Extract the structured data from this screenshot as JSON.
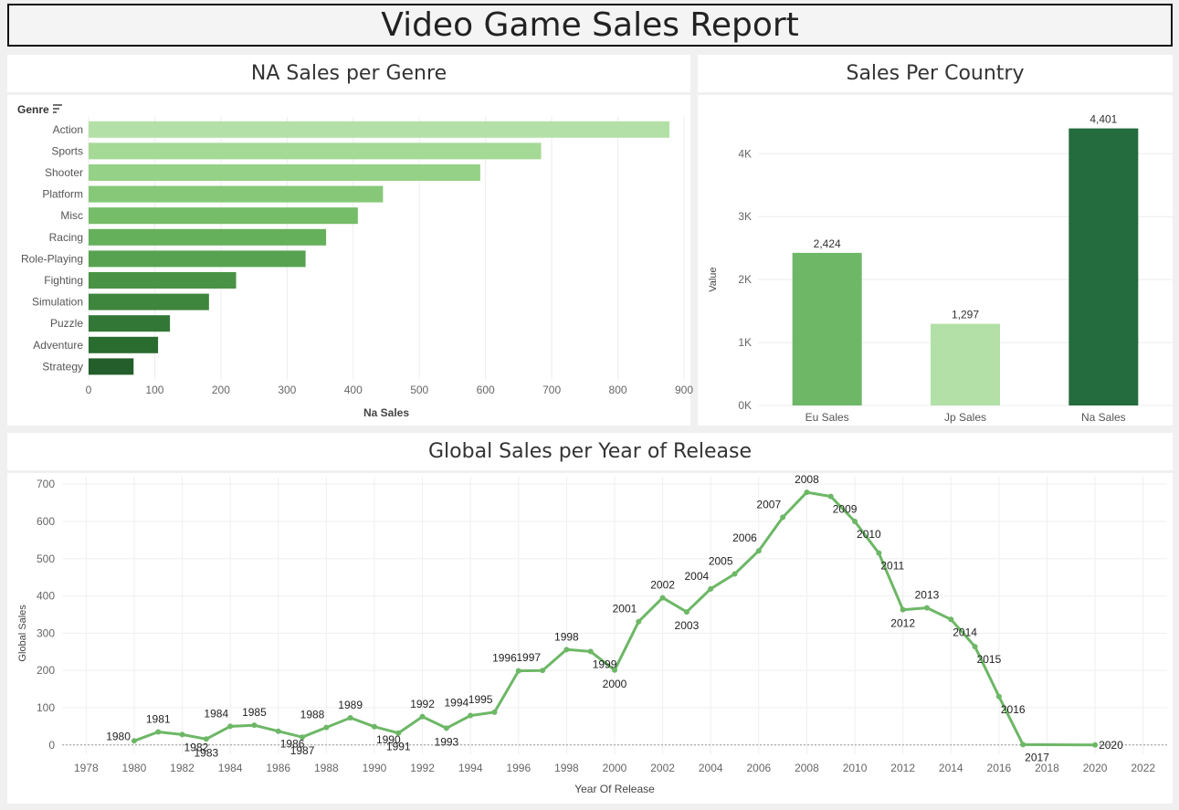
{
  "report": {
    "title": "Video Game Sales Report"
  },
  "charts": {
    "genre": {
      "title": "NA Sales per Genre",
      "chart_data": {
        "type": "bar",
        "orientation": "horizontal",
        "field_label": "Genre",
        "categories": [
          "Action",
          "Sports",
          "Shooter",
          "Platform",
          "Misc",
          "Racing",
          "Role-Playing",
          "Fighting",
          "Simulation",
          "Puzzle",
          "Adventure",
          "Strategy"
        ],
        "values": [
          878,
          684,
          592,
          445,
          407,
          359,
          328,
          223,
          182,
          123,
          105,
          68
        ],
        "xlabel": "Na Sales",
        "xlim": [
          0,
          900
        ],
        "ticks": [
          0,
          100,
          200,
          300,
          400,
          500,
          600,
          700,
          800,
          900
        ],
        "colors": [
          "#b3e0a6",
          "#a4d996",
          "#95d186",
          "#86c877",
          "#75bd68",
          "#65b05b",
          "#57a250",
          "#4a9346",
          "#3e853e",
          "#327736",
          "#2a6b30",
          "#235e2b"
        ],
        "grid": true
      }
    },
    "country": {
      "title": "Sales Per Country",
      "chart_data": {
        "type": "bar",
        "categories": [
          "Eu Sales",
          "Jp Sales",
          "Na Sales"
        ],
        "values": [
          2424,
          1297,
          4401
        ],
        "data_labels": [
          "2,424",
          "1,297",
          "4,401"
        ],
        "ylabel": "Value",
        "ylim": [
          0,
          4700
        ],
        "ticks": [
          0,
          1000,
          2000,
          3000,
          4000
        ],
        "tick_labels": [
          "0K",
          "1K",
          "2K",
          "3K",
          "4K"
        ],
        "colors": [
          "#6db766",
          "#b3e0a6",
          "#246b3e"
        ],
        "grid": true
      }
    },
    "global": {
      "title": "Global Sales per Year of Release",
      "chart_data": {
        "type": "line",
        "xlabel": "Year Of Release",
        "ylabel": "Global Sales",
        "xlim": [
          1977,
          2023
        ],
        "ylim": [
          -25,
          720
        ],
        "xticks": [
          1978,
          1980,
          1982,
          1984,
          1986,
          1988,
          1990,
          1992,
          1994,
          1996,
          1998,
          2000,
          2002,
          2004,
          2006,
          2008,
          2010,
          2012,
          2014,
          2016,
          2018,
          2020,
          2022
        ],
        "yticks": [
          0,
          100,
          200,
          300,
          400,
          500,
          600,
          700
        ],
        "color": "#6db766",
        "grid": true,
        "points": [
          {
            "x": 1980,
            "y": 11
          },
          {
            "x": 1981,
            "y": 35
          },
          {
            "x": 1982,
            "y": 28
          },
          {
            "x": 1983,
            "y": 16
          },
          {
            "x": 1984,
            "y": 50
          },
          {
            "x": 1985,
            "y": 53
          },
          {
            "x": 1986,
            "y": 37
          },
          {
            "x": 1987,
            "y": 21
          },
          {
            "x": 1988,
            "y": 47
          },
          {
            "x": 1989,
            "y": 73
          },
          {
            "x": 1990,
            "y": 49
          },
          {
            "x": 1991,
            "y": 32
          },
          {
            "x": 1992,
            "y": 76
          },
          {
            "x": 1993,
            "y": 45
          },
          {
            "x": 1994,
            "y": 79
          },
          {
            "x": 1995,
            "y": 88
          },
          {
            "x": 1996,
            "y": 199
          },
          {
            "x": 1997,
            "y": 200
          },
          {
            "x": 1998,
            "y": 256
          },
          {
            "x": 1999,
            "y": 251
          },
          {
            "x": 2000,
            "y": 201
          },
          {
            "x": 2001,
            "y": 331
          },
          {
            "x": 2002,
            "y": 395
          },
          {
            "x": 2003,
            "y": 357
          },
          {
            "x": 2004,
            "y": 419
          },
          {
            "x": 2005,
            "y": 459
          },
          {
            "x": 2006,
            "y": 521
          },
          {
            "x": 2007,
            "y": 611
          },
          {
            "x": 2008,
            "y": 678
          },
          {
            "x": 2009,
            "y": 667
          },
          {
            "x": 2010,
            "y": 600
          },
          {
            "x": 2011,
            "y": 515
          },
          {
            "x": 2012,
            "y": 363
          },
          {
            "x": 2013,
            "y": 368
          },
          {
            "x": 2014,
            "y": 337
          },
          {
            "x": 2015,
            "y": 264
          },
          {
            "x": 2016,
            "y": 130
          },
          {
            "x": 2017,
            "y": 1
          },
          {
            "x": 2020,
            "y": 0
          }
        ]
      }
    }
  }
}
